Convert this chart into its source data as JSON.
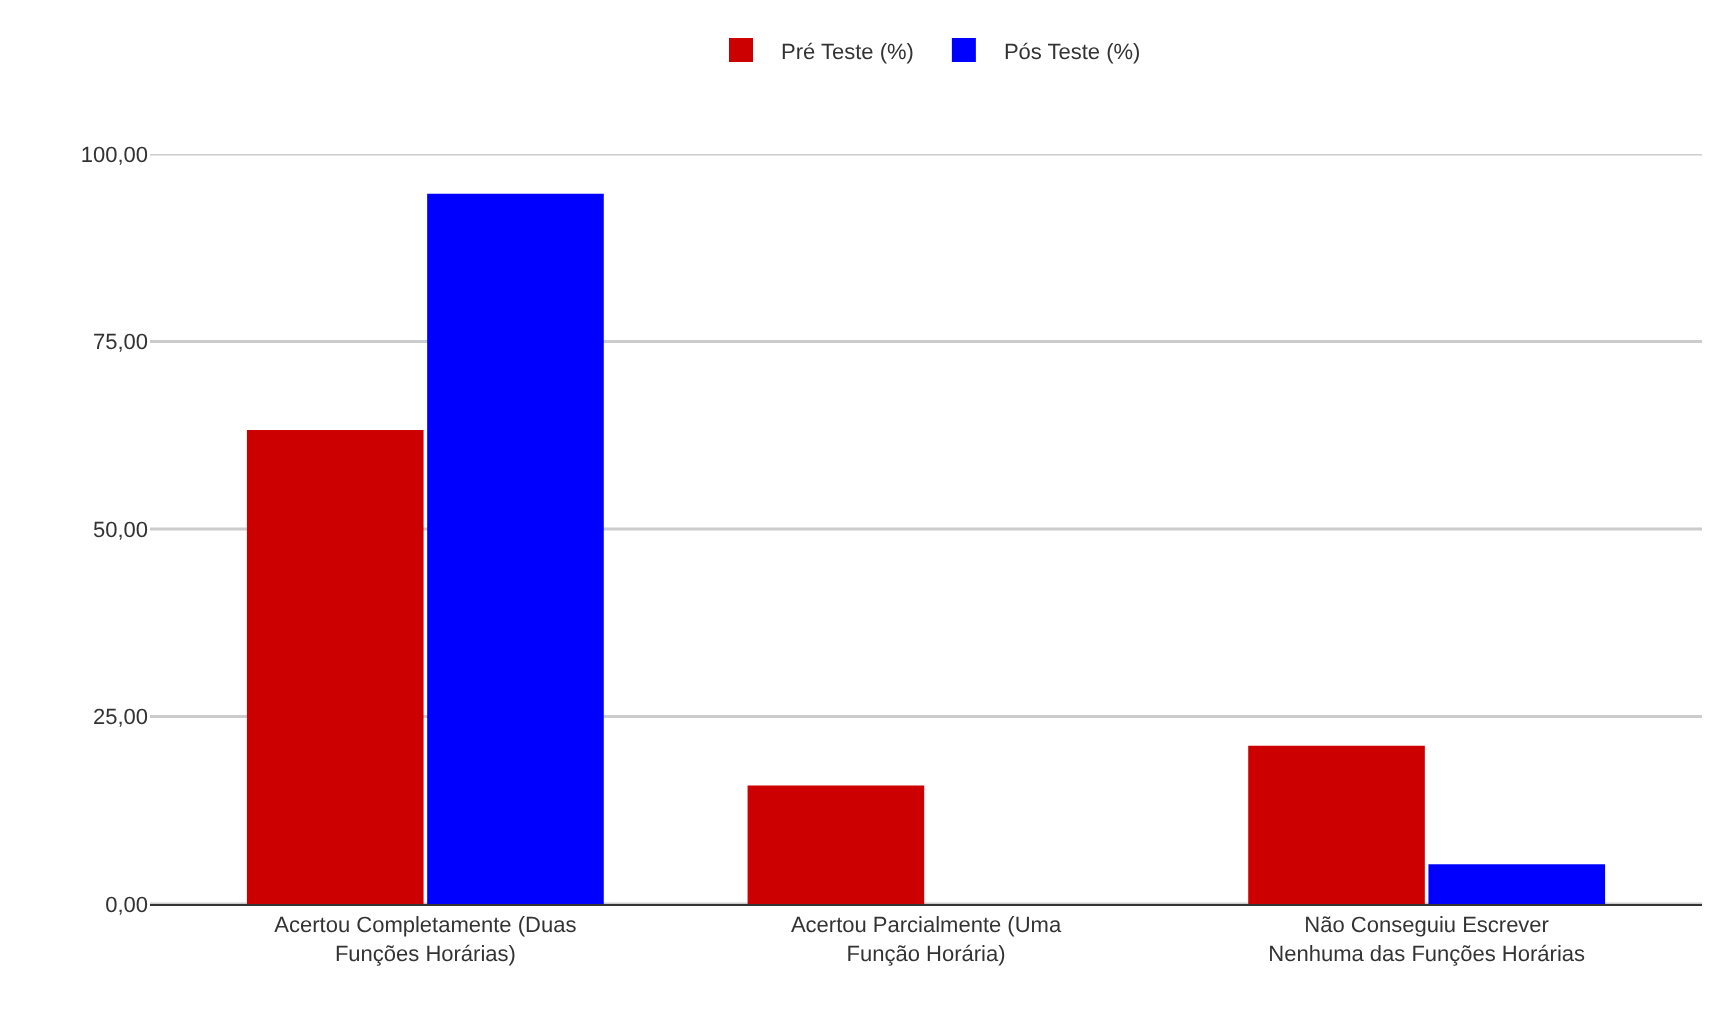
{
  "chart_data": {
    "type": "bar",
    "categories": [
      "Acertou Completamente (Duas Funções Horárias)",
      "Acertou Parcialmente (Uma Função Horária)",
      "Não Conseguiu Escrever Nenhuma das Funções Horárias"
    ],
    "series": [
      {
        "name": "Pré Teste (%)",
        "color": "#cc0000",
        "values": [
          63.2,
          15.8,
          21.1
        ]
      },
      {
        "name": "Pós Teste (%)",
        "color": "#0000ff",
        "values": [
          94.7,
          0,
          5.3
        ]
      }
    ],
    "ylim": [
      0,
      100
    ],
    "yticks": [
      {
        "value": 0,
        "label": "0,00"
      },
      {
        "value": 25,
        "label": "25,00"
      },
      {
        "value": 50,
        "label": "50,00"
      },
      {
        "value": 75,
        "label": "75,00"
      },
      {
        "value": 100,
        "label": "100,00"
      }
    ],
    "grid": "y",
    "legend": "top"
  }
}
